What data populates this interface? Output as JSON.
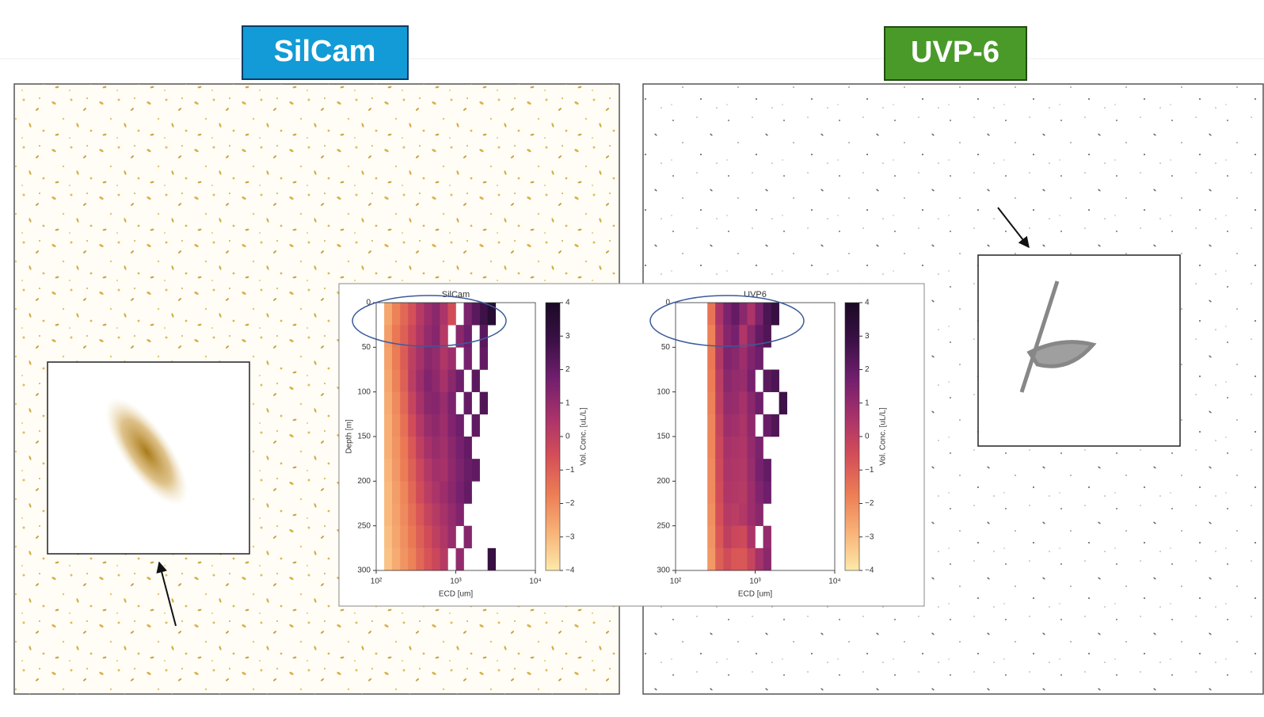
{
  "labels": {
    "left": "SilCam",
    "right": "UVP-6"
  },
  "chart_data": [
    {
      "type": "heatmap",
      "title": "SilCam",
      "xlabel": "ECD [um]",
      "ylabel": "Depth [m]",
      "colorbar_label": "Vol. Conc. [uL/L]",
      "xscale": "log",
      "xlim": [
        100,
        10000
      ],
      "xticks": [
        {
          "value": 100,
          "label": "10²"
        },
        {
          "value": 1000,
          "label": "10³"
        },
        {
          "value": 10000,
          "label": "10⁴"
        }
      ],
      "ylim": [
        0,
        300
      ],
      "y_inverted": true,
      "yticks": [
        0,
        50,
        100,
        150,
        200,
        250,
        300
      ],
      "clim": [
        -4,
        4
      ],
      "cticks": [
        {
          "value": -4,
          "label": "−4"
        },
        {
          "value": -3,
          "label": "−3"
        },
        {
          "value": -2,
          "label": "−2"
        },
        {
          "value": -1,
          "label": "−1"
        },
        0,
        1,
        2,
        3,
        4
      ],
      "colormap": [
        "#fce9aa",
        "#f8b277",
        "#ec7d55",
        "#d44e58",
        "#a8326a",
        "#721f6e",
        "#3b1046",
        "#1a0a25"
      ],
      "x_bins": [
        126,
        158,
        200,
        251,
        316,
        398,
        501,
        631,
        794,
        1000,
        1259,
        1585,
        1995,
        2512,
        3162
      ],
      "y_bins": [
        0,
        25,
        50,
        75,
        100,
        125,
        150,
        175,
        200,
        225,
        250,
        275,
        300
      ],
      "values": [
        [
          -2.6,
          -1.8,
          -1.2,
          -0.6,
          0.2,
          0.8,
          1.2,
          0.5,
          -0.5,
          null,
          1.5,
          2.2,
          2.8,
          3.5
        ],
        [
          -2.4,
          -1.6,
          -1.0,
          -0.3,
          0.4,
          1.0,
          1.3,
          0.2,
          null,
          1.2,
          1.8,
          null,
          2.2,
          null
        ],
        [
          -2.5,
          -1.7,
          -0.9,
          0.0,
          0.6,
          1.2,
          1.0,
          0.4,
          0.8,
          null,
          1.6,
          null,
          2.0,
          null
        ],
        [
          -2.6,
          -1.8,
          -1.0,
          0.1,
          0.8,
          1.4,
          1.1,
          0.6,
          1.2,
          1.8,
          null,
          2.2,
          null,
          null
        ],
        [
          -2.7,
          -2.0,
          -1.2,
          -0.2,
          0.6,
          1.2,
          1.3,
          0.9,
          1.5,
          null,
          2.0,
          null,
          2.4,
          null
        ],
        [
          -2.8,
          -2.1,
          -1.4,
          -0.5,
          0.3,
          0.9,
          1.1,
          0.8,
          1.4,
          1.8,
          null,
          2.1,
          null,
          null
        ],
        [
          -2.8,
          -2.2,
          -1.6,
          -0.8,
          0.0,
          0.6,
          0.9,
          0.7,
          1.2,
          1.6,
          2.0,
          null,
          null,
          null
        ],
        [
          -2.9,
          -2.3,
          -1.7,
          -1.0,
          -0.3,
          0.3,
          0.7,
          0.6,
          1.1,
          1.5,
          1.9,
          2.1,
          null,
          null
        ],
        [
          -3.0,
          -2.4,
          -1.9,
          -1.2,
          -0.5,
          0.1,
          0.5,
          0.8,
          1.2,
          1.6,
          2.0,
          null,
          null,
          null
        ],
        [
          -3.0,
          -2.5,
          -2.0,
          -1.4,
          -0.8,
          -0.2,
          0.2,
          0.6,
          1.0,
          1.4,
          null,
          null,
          null,
          null
        ],
        [
          -3.1,
          -2.6,
          -2.1,
          -1.6,
          -1.0,
          -0.5,
          0.0,
          0.4,
          0.9,
          null,
          1.3,
          null,
          null,
          null
        ],
        [
          -3.2,
          -2.7,
          -2.2,
          -1.8,
          -1.2,
          -0.7,
          -0.3,
          0.2,
          null,
          1.0,
          null,
          null,
          null,
          3.0
        ]
      ]
    },
    {
      "type": "heatmap",
      "title": "UVP6",
      "xlabel": "ECD [um]",
      "colorbar_label": "Vol. Conc. [uL/L]",
      "xscale": "log",
      "xlim": [
        100,
        10000
      ],
      "xticks": [
        {
          "value": 100,
          "label": "10²"
        },
        {
          "value": 1000,
          "label": "10³"
        },
        {
          "value": 10000,
          "label": "10⁴"
        }
      ],
      "ylim": [
        0,
        300
      ],
      "y_inverted": true,
      "yticks": [
        0,
        50,
        100,
        150,
        200,
        250,
        300
      ],
      "clim": [
        -4,
        4
      ],
      "cticks": [
        {
          "value": -4,
          "label": "−4"
        },
        {
          "value": -3,
          "label": "−3"
        },
        {
          "value": -2,
          "label": "−2"
        },
        {
          "value": -1,
          "label": "−1"
        },
        0,
        1,
        2,
        3,
        4
      ],
      "colormap": [
        "#fce9aa",
        "#f8b277",
        "#ec7d55",
        "#d44e58",
        "#a8326a",
        "#721f6e",
        "#3b1046",
        "#1a0a25"
      ],
      "x_bins": [
        126,
        158,
        200,
        251,
        316,
        398,
        501,
        631,
        794,
        1000,
        1259,
        1585,
        1995,
        2512,
        3162
      ],
      "y_bins": [
        0,
        25,
        50,
        75,
        100,
        125,
        150,
        175,
        200,
        225,
        250,
        275,
        300
      ],
      "values": [
        [
          null,
          null,
          null,
          -1.5,
          0.5,
          1.5,
          2.0,
          1.2,
          0.5,
          1.5,
          2.5,
          3.0,
          null,
          null
        ],
        [
          null,
          null,
          null,
          -1.8,
          0.2,
          1.3,
          1.6,
          0.4,
          1.2,
          2.0,
          2.4,
          null,
          null,
          null
        ],
        [
          null,
          null,
          null,
          -1.6,
          0.3,
          1.4,
          1.2,
          0.8,
          1.4,
          1.8,
          null,
          null,
          null,
          null
        ],
        [
          null,
          null,
          null,
          -1.7,
          0.1,
          1.2,
          1.0,
          0.9,
          1.6,
          null,
          2.2,
          2.5,
          null,
          null
        ],
        [
          null,
          null,
          null,
          -1.8,
          0.0,
          1.0,
          0.9,
          0.6,
          1.2,
          1.8,
          null,
          null,
          2.8,
          null
        ],
        [
          null,
          null,
          null,
          -1.9,
          -0.2,
          0.8,
          0.7,
          0.5,
          1.1,
          null,
          1.9,
          2.4,
          null,
          null
        ],
        [
          null,
          null,
          null,
          -1.9,
          -0.3,
          0.6,
          0.5,
          0.4,
          1.0,
          1.5,
          null,
          null,
          null,
          null
        ],
        [
          null,
          null,
          null,
          -2.0,
          -0.4,
          0.5,
          0.4,
          0.3,
          0.9,
          1.6,
          2.0,
          null,
          null,
          null
        ],
        [
          null,
          null,
          null,
          -2.0,
          -0.5,
          0.4,
          0.3,
          0.2,
          0.8,
          1.4,
          1.8,
          null,
          null,
          null
        ],
        [
          null,
          null,
          null,
          -2.1,
          -0.6,
          0.2,
          0.1,
          0.3,
          0.8,
          1.2,
          null,
          null,
          null,
          null
        ],
        [
          null,
          null,
          null,
          -2.2,
          -0.8,
          0.0,
          -0.3,
          -0.4,
          0.5,
          null,
          1.0,
          null,
          null,
          null
        ],
        [
          null,
          null,
          null,
          -2.3,
          -1.0,
          -0.5,
          -0.8,
          -0.8,
          -0.2,
          0.6,
          1.2,
          null,
          null,
          null
        ]
      ]
    }
  ]
}
